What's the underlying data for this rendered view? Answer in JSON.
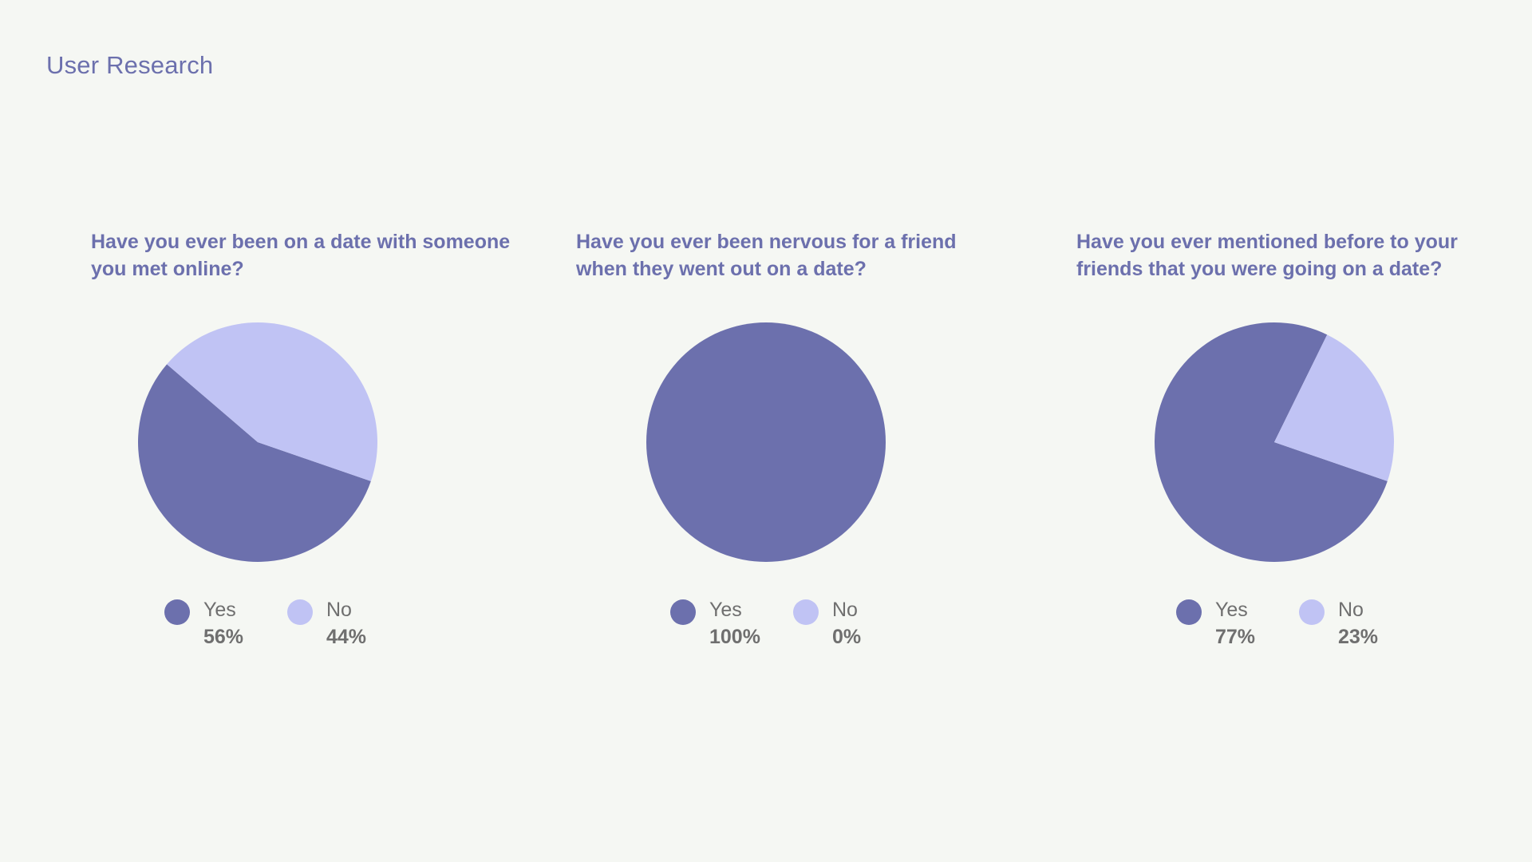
{
  "page": {
    "title": "User Research"
  },
  "colors": {
    "yes": "#6c70ad",
    "no": "#c0c3f4",
    "background": "#f5f7f3",
    "text": "#6f6f6f"
  },
  "chart_data": [
    {
      "type": "pie",
      "title": "Have you ever been on a date with someone you met online?",
      "slices": [
        {
          "label": "Yes",
          "value": 56,
          "display": "56%"
        },
        {
          "label": "No",
          "value": 44,
          "display": "44%"
        }
      ],
      "legend": "bottom"
    },
    {
      "type": "pie",
      "title": "Have you ever been nervous for a friend when they went out on a date?",
      "slices": [
        {
          "label": "Yes",
          "value": 100,
          "display": "100%"
        },
        {
          "label": "No",
          "value": 0,
          "display": "0%"
        }
      ],
      "legend": "bottom"
    },
    {
      "type": "pie",
      "title": "Have you ever mentioned before to your friends that you were going on a date?",
      "slices": [
        {
          "label": "Yes",
          "value": 77,
          "display": "77%"
        },
        {
          "label": "No",
          "value": 23,
          "display": "23%"
        }
      ],
      "legend": "bottom"
    }
  ]
}
